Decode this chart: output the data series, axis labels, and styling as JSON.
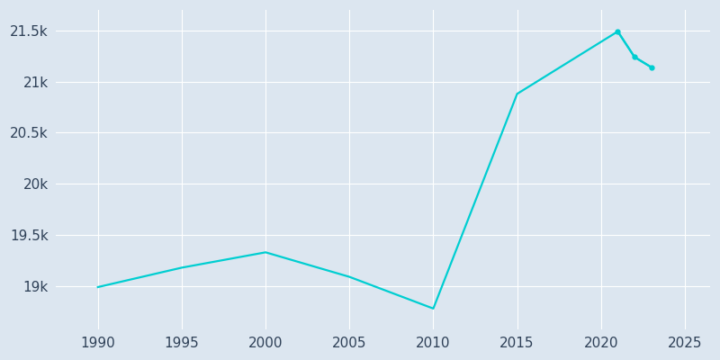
{
  "years": [
    1990,
    1995,
    2000,
    2005,
    2010,
    2015,
    2021,
    2022,
    2023
  ],
  "population": [
    18990,
    19180,
    19330,
    19090,
    18780,
    20880,
    21490,
    21240,
    21140
  ],
  "line_color": "#00CED1",
  "background_color": "#dce6f0",
  "xlabel": "",
  "ylabel": "",
  "xlim": [
    1987.5,
    2026.5
  ],
  "ylim": [
    18580,
    21700
  ],
  "yticks": [
    19000,
    19500,
    20000,
    20500,
    21000,
    21500
  ],
  "ytick_labels": [
    "19k",
    "19.5k",
    "20k",
    "20.5k",
    "21k",
    "21.5k"
  ],
  "xticks": [
    1990,
    1995,
    2000,
    2005,
    2010,
    2015,
    2020,
    2025
  ],
  "grid_color": "#ffffff",
  "text_color": "#2e4057",
  "line_width": 1.6,
  "marker_size": 3.5,
  "font_size": 11
}
